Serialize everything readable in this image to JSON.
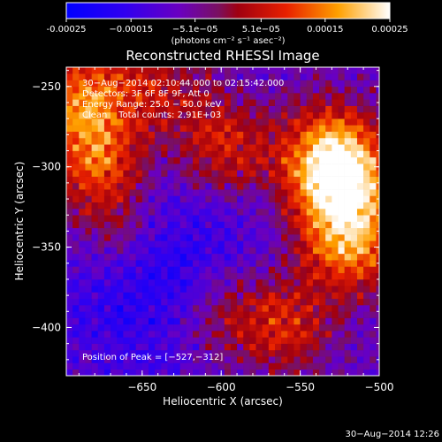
{
  "chart_data": {
    "type": "heatmap",
    "title": "Reconstructed RHESSI Image",
    "xlabel": "Heliocentric X (arcsec)",
    "ylabel": "Heliocentric Y (arcsec)",
    "xlim": [
      -698,
      -500
    ],
    "ylim": [
      -430,
      -238
    ],
    "x_ticks": [
      -650,
      -600,
      -550,
      -500
    ],
    "x_tick_labels": [
      "−650",
      "−600",
      "−550",
      "−500"
    ],
    "y_ticks": [
      -250,
      -300,
      -350,
      -400
    ],
    "y_tick_labels": [
      "−250",
      "−300",
      "−350",
      "−400"
    ],
    "colorbar": {
      "range": [
        -0.00025,
        0.00025
      ],
      "tick_values": [
        -0.00025,
        -0.00015,
        -5.1e-05,
        5.1e-05,
        0.00015,
        0.00025
      ],
      "tick_labels": [
        "-0.00025",
        "−0.00015",
        "−5.1e−05",
        "5.1e−05",
        "0.00015",
        "0.00025"
      ],
      "units": "(photons cm⁻² s⁻¹ asec⁻²)",
      "colormap": [
        "#0000ff",
        "#4000e0",
        "#7000b0",
        "#8a1030",
        "#c00000",
        "#ff4000",
        "#ffb000",
        "#ffffff"
      ]
    },
    "annotations": [
      "30−Aug−2014 02:10:44.000 to 02:15:42.000",
      "Detectors: 3F 6F 8F 9F, Att 0",
      "Energy Range: 25.0 − 50.0 keV",
      "Clean    Total counts: 2.91E+03"
    ],
    "peak_label": "Position of Peak = [−527,−312]",
    "peak": [
      -527,
      -312
    ],
    "emission_sources": [
      {
        "x": -527,
        "y": -312,
        "amp": 1.0
      },
      {
        "x": -520,
        "y": -350,
        "amp": 0.85
      },
      {
        "x": -532,
        "y": -290,
        "amp": 0.7
      },
      {
        "x": -600,
        "y": -290,
        "amp": 0.6
      },
      {
        "x": -690,
        "y": -260,
        "amp": 0.8
      },
      {
        "x": -680,
        "y": -300,
        "amp": 0.7
      },
      {
        "x": -670,
        "y": -340,
        "amp": 0.4
      },
      {
        "x": -560,
        "y": -400,
        "amp": 0.55
      },
      {
        "x": -600,
        "y": -395,
        "amp": 0.4
      },
      {
        "x": -640,
        "y": -250,
        "amp": 0.45
      }
    ],
    "negative_region": {
      "x": -645,
      "y": -365,
      "amp": -0.6
    }
  },
  "footer": {
    "timestamp": "30−Aug−2014 12:26"
  }
}
